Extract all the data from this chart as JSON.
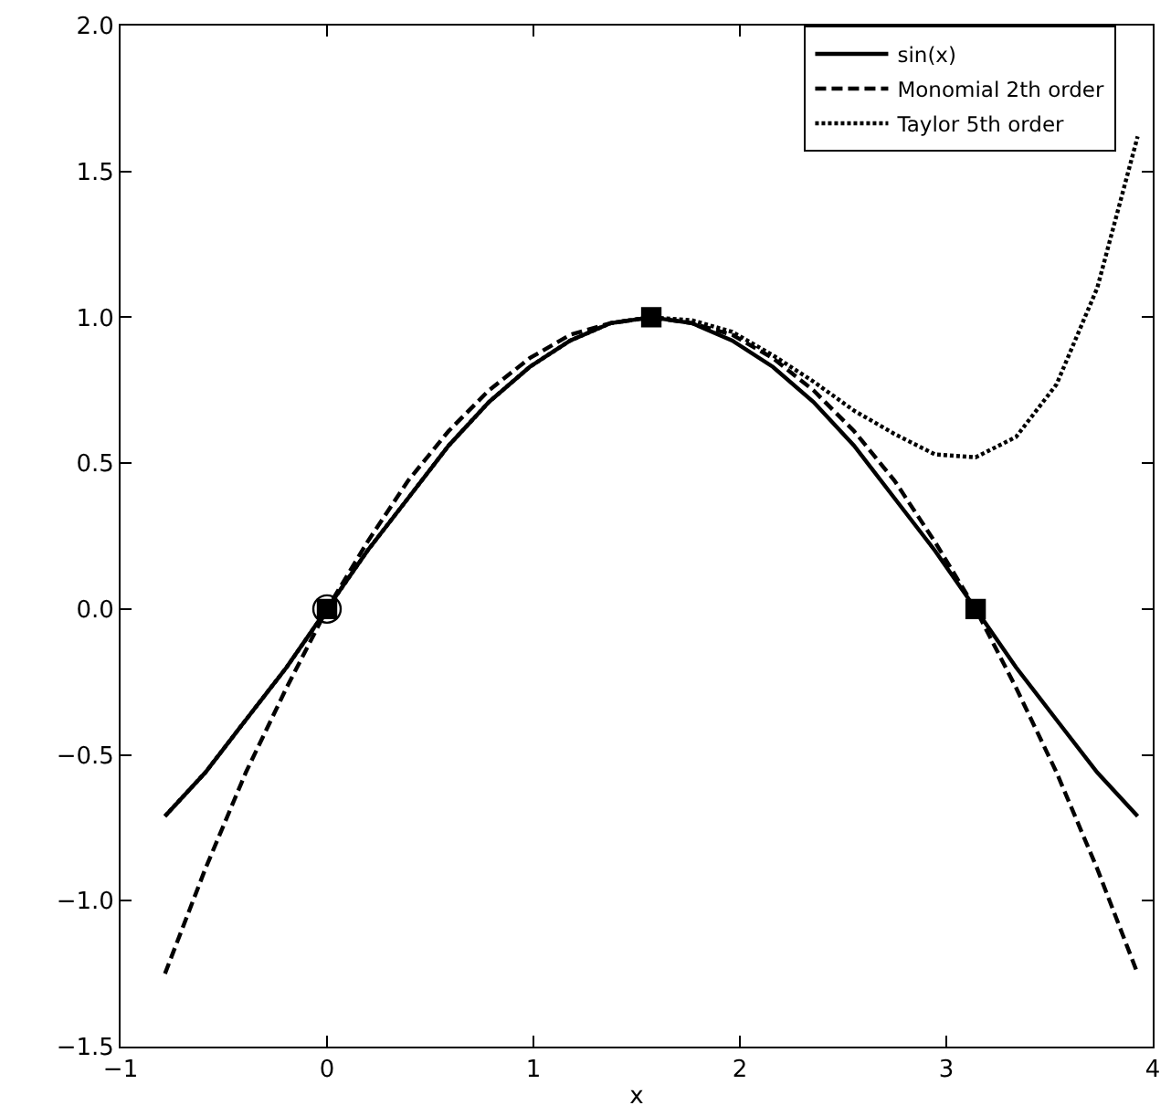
{
  "chart_data": {
    "type": "line",
    "xlabel": "x",
    "x": [
      -0.785,
      -0.589,
      -0.393,
      -0.196,
      0,
      0.196,
      0.393,
      0.589,
      0.785,
      0.982,
      1.178,
      1.374,
      1.571,
      1.767,
      1.963,
      2.16,
      2.356,
      2.553,
      2.749,
      2.945,
      3.142,
      3.338,
      3.534,
      3.731,
      3.927
    ],
    "series": [
      {
        "name": "sin(x)",
        "color": "#000000",
        "line_style": "solid",
        "values": [
          -0.71,
          -0.56,
          -0.38,
          -0.2,
          0,
          0.2,
          0.38,
          0.56,
          0.71,
          0.83,
          0.92,
          0.98,
          1,
          0.98,
          0.92,
          0.83,
          0.71,
          0.56,
          0.38,
          0.2,
          0,
          -0.2,
          -0.38,
          -0.56,
          -0.71
        ]
      },
      {
        "name": "Monomial 2th order",
        "color": "#000000",
        "line_style": "dashed",
        "values": [
          -1.25,
          -0.89,
          -0.56,
          -0.27,
          0,
          0.23,
          0.44,
          0.61,
          0.75,
          0.86,
          0.94,
          0.98,
          1,
          0.98,
          0.94,
          0.86,
          0.75,
          0.61,
          0.44,
          0.23,
          0,
          -0.27,
          -0.56,
          -0.89,
          -1.25
        ]
      },
      {
        "name": "Taylor 5th order",
        "color": "#000000",
        "line_style": "dotted",
        "values": [
          -0.71,
          -0.56,
          -0.38,
          -0.2,
          0,
          0.2,
          0.38,
          0.56,
          0.71,
          0.83,
          0.92,
          0.98,
          1,
          0.99,
          0.95,
          0.87,
          0.78,
          0.68,
          0.6,
          0.53,
          0.52,
          0.59,
          0.77,
          1.1,
          1.62
        ]
      },
      {
        "type": "scatter",
        "marker": "square",
        "color": "#000000",
        "x": [
          0,
          1.571,
          3.142
        ],
        "values": [
          0,
          1,
          0
        ]
      },
      {
        "type": "scatter",
        "marker": "circle",
        "color": "#000000",
        "x": [
          0
        ],
        "values": [
          0
        ]
      }
    ],
    "xlim": [
      -1,
      4
    ],
    "xticks": [
      {
        "value": -1,
        "label": "−1"
      },
      0,
      1,
      2,
      3,
      4
    ],
    "ylim": [
      -1.5,
      2.0
    ],
    "yticks": [
      {
        "value": -1.5,
        "label": "−1.5"
      },
      {
        "value": -1.0,
        "label": "−1.0"
      },
      {
        "value": -0.5,
        "label": "−0.5"
      },
      {
        "value": 0,
        "label": "0.0"
      },
      {
        "value": 0.5,
        "label": "0.5"
      },
      {
        "value": 1.0,
        "label": "1.0"
      },
      {
        "value": 1.5,
        "label": "1.5"
      },
      {
        "value": 2.0,
        "label": "2.0"
      }
    ],
    "legend": "top right"
  }
}
